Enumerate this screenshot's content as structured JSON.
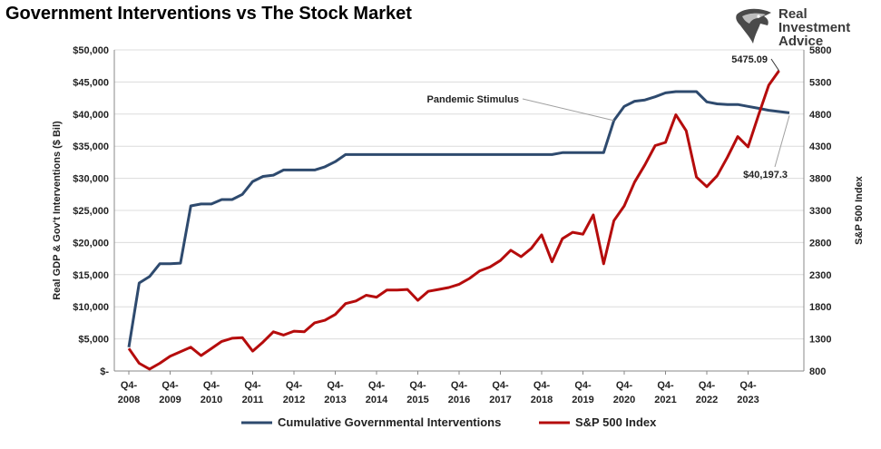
{
  "header": {
    "title": "Government Interventions vs The Stock Market"
  },
  "logo": {
    "line1": "Real",
    "line2": "Investment",
    "line3": "Advice",
    "icon": "eagle-head-icon"
  },
  "colors": {
    "interventions": "#2e4a6e",
    "sp500": "#b50c0c",
    "grid": "#dcdcdc",
    "axis": "#888888"
  },
  "chart_data": {
    "type": "line",
    "x_start_quarter": "2008-Q4",
    "x_tick_labels": [
      [
        "Q4-",
        "2008"
      ],
      [
        "Q4-",
        "2009"
      ],
      [
        "Q4-",
        "2010"
      ],
      [
        "Q4-",
        "2011"
      ],
      [
        "Q4-",
        "2012"
      ],
      [
        "Q4-",
        "2013"
      ],
      [
        "Q4-",
        "2014"
      ],
      [
        "Q4-",
        "2015"
      ],
      [
        "Q4-",
        "2016"
      ],
      [
        "Q4-",
        "2017"
      ],
      [
        "Q4-",
        "2018"
      ],
      [
        "Q4-",
        "2019"
      ],
      [
        "Q4-",
        "2020"
      ],
      [
        "Q4-",
        "2021"
      ],
      [
        "Q4-",
        "2022"
      ],
      [
        "Q4-",
        "2023"
      ]
    ],
    "y_left": {
      "label": "Real GDP & Gov't Interventions ($ Bil)",
      "range": [
        0,
        50000
      ],
      "ticks": [
        "$-",
        "$5,000",
        "$10,000",
        "$15,000",
        "$20,000",
        "$25,000",
        "$30,000",
        "$35,000",
        "$40,000",
        "$45,000",
        "$50,000"
      ]
    },
    "y_right": {
      "label": "S&P 500 Index",
      "range": [
        800,
        5800
      ],
      "ticks": [
        "800",
        "1300",
        "1800",
        "2300",
        "2800",
        "3300",
        "3800",
        "4300",
        "4800",
        "5300",
        "5800"
      ]
    },
    "grid": "horizontal",
    "legend_position": "bottom",
    "series": [
      {
        "name": "Cumulative Governmental Interventions",
        "axis": "left",
        "values": [
          3700,
          13700,
          14700,
          16700,
          16700,
          16800,
          25700,
          26000,
          26000,
          26700,
          26700,
          27500,
          29500,
          30300,
          30500,
          31300,
          31300,
          31300,
          31300,
          31800,
          32600,
          33700,
          33700,
          33700,
          33700,
          33700,
          33700,
          33700,
          33700,
          33700,
          33700,
          33700,
          33700,
          33700,
          33700,
          33700,
          33700,
          33700,
          33700,
          33700,
          33700,
          33700,
          34000,
          34000,
          34000,
          34000,
          34000,
          39000,
          41200,
          42000,
          42200,
          42700,
          43300,
          43500,
          43500,
          43500,
          41900,
          41600,
          41500,
          41500,
          41200,
          40900,
          40600,
          40400,
          40197.3
        ]
      },
      {
        "name": "S&P 500 Index",
        "axis": "right",
        "values": [
          1150,
          920,
          830,
          920,
          1030,
          1100,
          1170,
          1040,
          1150,
          1260,
          1310,
          1320,
          1110,
          1250,
          1410,
          1360,
          1420,
          1410,
          1550,
          1590,
          1680,
          1850,
          1890,
          1980,
          1950,
          2060,
          2060,
          2070,
          1900,
          2040,
          2070,
          2100,
          2150,
          2240,
          2360,
          2420,
          2520,
          2680,
          2580,
          2710,
          2920,
          2500,
          2860,
          2960,
          2930,
          3230,
          2470,
          3140,
          3370,
          3740,
          4010,
          4310,
          4360,
          4790,
          4540,
          3820,
          3670,
          3840,
          4130,
          4450,
          4290,
          4780,
          5250,
          5475.09
        ]
      }
    ],
    "annotations": [
      {
        "text": "Pandemic Stimulus",
        "series": 0,
        "index": 47
      },
      {
        "text": "5475.09",
        "series": 1,
        "index": 63
      },
      {
        "text": "$40,197.3",
        "series": 0,
        "index": 64
      }
    ]
  }
}
